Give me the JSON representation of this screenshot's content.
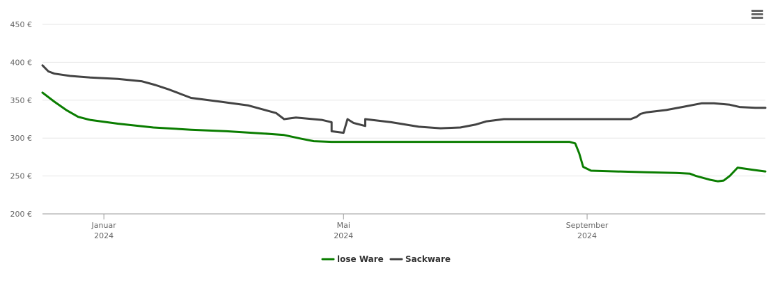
{
  "menu": {
    "icon": "hamburger-menu-icon"
  },
  "chart_data": {
    "type": "line",
    "title": "",
    "xlabel": "",
    "ylabel": "",
    "ylim": [
      200,
      450
    ],
    "y_ticks": [
      {
        "value": 450,
        "label": "450 €"
      },
      {
        "value": 400,
        "label": "400 €"
      },
      {
        "value": 350,
        "label": "350 €"
      },
      {
        "value": 300,
        "label": "300 €"
      },
      {
        "value": 250,
        "label": "250 €"
      },
      {
        "value": 200,
        "label": "200 €"
      }
    ],
    "xlim": [
      "2023-12-01",
      "2024-11-30"
    ],
    "x_ticks": [
      {
        "date": "2024-01-01",
        "line1": "Januar",
        "line2": "2024"
      },
      {
        "date": "2024-05-01",
        "line1": "Mai",
        "line2": "2024"
      },
      {
        "date": "2024-09-01",
        "line1": "September",
        "line2": "2024"
      }
    ],
    "grid": true,
    "legend_position": "bottom-center",
    "series": [
      {
        "name": "lose Ware",
        "color": "#0a7d00",
        "points": [
          [
            "2023-12-01",
            360
          ],
          [
            "2023-12-07",
            348
          ],
          [
            "2023-12-13",
            337
          ],
          [
            "2023-12-19",
            328
          ],
          [
            "2023-12-25",
            324
          ],
          [
            "2024-01-08",
            319
          ],
          [
            "2024-01-26",
            314
          ],
          [
            "2024-02-14",
            311
          ],
          [
            "2024-03-03",
            309
          ],
          [
            "2024-03-22",
            306
          ],
          [
            "2024-04-01",
            304
          ],
          [
            "2024-04-10",
            299
          ],
          [
            "2024-04-16",
            296
          ],
          [
            "2024-04-25",
            295
          ],
          [
            "2024-05-15",
            295
          ],
          [
            "2024-06-15",
            295
          ],
          [
            "2024-07-15",
            295
          ],
          [
            "2024-08-23",
            295
          ],
          [
            "2024-08-26",
            293
          ],
          [
            "2024-08-28",
            280
          ],
          [
            "2024-08-30",
            262
          ],
          [
            "2024-09-03",
            257
          ],
          [
            "2024-09-16",
            256
          ],
          [
            "2024-10-01",
            255
          ],
          [
            "2024-10-16",
            254
          ],
          [
            "2024-10-23",
            253
          ],
          [
            "2024-10-26",
            250
          ],
          [
            "2024-11-02",
            245
          ],
          [
            "2024-11-06",
            243
          ],
          [
            "2024-11-09",
            244
          ],
          [
            "2024-11-12",
            250
          ],
          [
            "2024-11-16",
            261
          ],
          [
            "2024-11-24",
            258
          ],
          [
            "2024-11-30",
            256
          ]
        ]
      },
      {
        "name": "Sackware",
        "color": "#434343",
        "points": [
          [
            "2023-12-01",
            396
          ],
          [
            "2023-12-04",
            388
          ],
          [
            "2023-12-07",
            385
          ],
          [
            "2023-12-15",
            382
          ],
          [
            "2023-12-25",
            380
          ],
          [
            "2024-01-08",
            378
          ],
          [
            "2024-01-20",
            375
          ],
          [
            "2024-01-27",
            370
          ],
          [
            "2024-02-03",
            364
          ],
          [
            "2024-02-09",
            358
          ],
          [
            "2024-02-14",
            353
          ],
          [
            "2024-02-29",
            348
          ],
          [
            "2024-03-14",
            343
          ],
          [
            "2024-03-28",
            333
          ],
          [
            "2024-04-07",
            327
          ],
          [
            "2024-04-25",
            321
          ],
          [
            "2024-05-12",
            316
          ],
          [
            "2024-04-01",
            325
          ],
          [
            "2024-04-20",
            324
          ],
          [
            "2024-05-06",
            320
          ],
          [
            "2024-04-25",
            309
          ],
          [
            "2024-05-01",
            307
          ],
          [
            "2024-05-03",
            325
          ],
          [
            "2024-05-12",
            325
          ],
          [
            "2024-05-25",
            321
          ],
          [
            "2024-06-08",
            315
          ],
          [
            "2024-06-19",
            313
          ],
          [
            "2024-06-29",
            314
          ],
          [
            "2024-07-07",
            318
          ],
          [
            "2024-07-12",
            322
          ],
          [
            "2024-07-21",
            325
          ],
          [
            "2024-08-15",
            325
          ],
          [
            "2024-09-11",
            325
          ],
          [
            "2024-09-23",
            325
          ],
          [
            "2024-09-26",
            328
          ],
          [
            "2024-09-28",
            332
          ],
          [
            "2024-10-01",
            334
          ],
          [
            "2024-10-11",
            337
          ],
          [
            "2024-10-19",
            341
          ],
          [
            "2024-10-29",
            346
          ],
          [
            "2024-11-04",
            346
          ],
          [
            "2024-11-12",
            344
          ],
          [
            "2024-11-17",
            341
          ],
          [
            "2024-11-25",
            340
          ],
          [
            "2024-11-30",
            340
          ]
        ]
      }
    ]
  }
}
